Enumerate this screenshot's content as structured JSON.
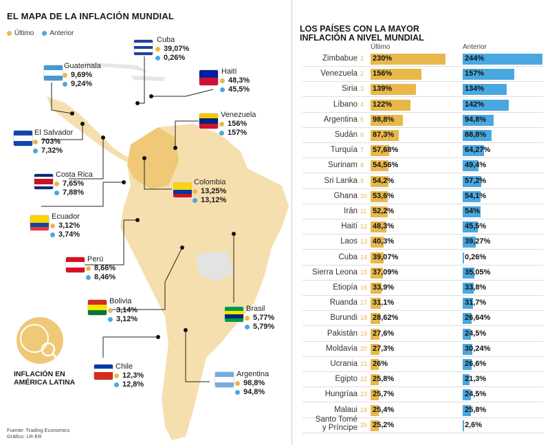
{
  "map": {
    "title": "EL MAPA DE LA INFLACIÓN MUNDIAL",
    "legend": {
      "ultimo": "Último",
      "anterior": "Anterior"
    },
    "colors": {
      "ultimo": "#e8b84b",
      "anterior": "#4aa8e0",
      "land": "#f6dfae",
      "land_dark": "#efc977"
    },
    "countries": [
      {
        "name": "Cuba",
        "ultimo": "39,07%",
        "anterior": "0,26%",
        "flag": [
          "#1e3f9c",
          "#ffffff",
          "#1e3f9c",
          "#ffffff",
          "#1e3f9c"
        ]
      },
      {
        "name": "Guatemala",
        "ultimo": "9,69%",
        "anterior": "9,24%",
        "flag": [
          "#4997d0",
          "#ffffff",
          "#4997d0"
        ]
      },
      {
        "name": "Haití",
        "ultimo": "48,3%",
        "anterior": "45,5%",
        "flag": [
          "#00209f",
          "#d21034"
        ]
      },
      {
        "name": "El Salvador",
        "ultimo": "703%",
        "anterior": "7,32%",
        "flag": [
          "#0f47af",
          "#ffffff",
          "#0f47af"
        ]
      },
      {
        "name": "Venezuela",
        "ultimo": "156%",
        "anterior": "157%",
        "flag": [
          "#f4c500",
          "#00247d",
          "#cf142b"
        ]
      },
      {
        "name": "Costa Rica",
        "ultimo": "7,65%",
        "anterior": "7,88%",
        "flag": [
          "#002b7f",
          "#ffffff",
          "#ce1126",
          "#ce1126",
          "#ffffff",
          "#002b7f"
        ]
      },
      {
        "name": "Colombia",
        "ultimo": "13,25%",
        "anterior": "13,12%",
        "flag": [
          "#fcd116",
          "#fcd116",
          "#003893",
          "#ce1126"
        ]
      },
      {
        "name": "Ecuador",
        "ultimo": "3,12%",
        "anterior": "3,74%",
        "flag": [
          "#ffd100",
          "#ffd100",
          "#034ea2",
          "#ef3340"
        ]
      },
      {
        "name": "Perú",
        "ultimo": "8,66%",
        "anterior": "8,46%",
        "flag": [
          "#d91023",
          "#ffffff",
          "#d91023"
        ]
      },
      {
        "name": "Bolivia",
        "ultimo": "3,14%",
        "anterior": "3,12%",
        "flag": [
          "#d52b1e",
          "#f9e300",
          "#007934"
        ]
      },
      {
        "name": "Brasil",
        "ultimo": "5,77%",
        "anterior": "5,79%",
        "flag": [
          "#009c3b",
          "#ffdf00",
          "#002776",
          "#009c3b"
        ]
      },
      {
        "name": "Chile",
        "ultimo": "12,3%",
        "anterior": "12,8%",
        "flag": [
          "#0039a6",
          "#ffffff",
          "#d52b1e",
          "#d52b1e"
        ]
      },
      {
        "name": "Argentina",
        "ultimo": "98,8%",
        "anterior": "94,8%",
        "flag": [
          "#74acdf",
          "#ffffff",
          "#74acdf"
        ]
      }
    ],
    "badge_label": "INFLACIÓN EN AMÉRICA LATINA",
    "source": "Fuente: Trading Economics",
    "graphic": "Gráfico: LR-ER"
  },
  "chart_data": {
    "type": "bar",
    "title": "LOS PAÍSES CON LA MAYOR INFLACIÓN A NIVEL MUNDIAL",
    "series": [
      {
        "name": "Último",
        "color": "#e8b84b"
      },
      {
        "name": "Anterior",
        "color": "#4aa8e0"
      }
    ],
    "rows": [
      {
        "rank": "1",
        "country": "Zimbabue",
        "ultimo": 230,
        "ultimo_label": "230%",
        "anterior": 244,
        "anterior_label": "244%"
      },
      {
        "rank": "2",
        "country": "Venezuela",
        "ultimo": 156,
        "ultimo_label": "156%",
        "anterior": 157,
        "anterior_label": "157%"
      },
      {
        "rank": "3",
        "country": "Siria",
        "ultimo": 139,
        "ultimo_label": "139%",
        "anterior": 134,
        "anterior_label": "134%"
      },
      {
        "rank": "4",
        "country": "Líbano",
        "ultimo": 122,
        "ultimo_label": "122%",
        "anterior": 142,
        "anterior_label": "142%"
      },
      {
        "rank": "5",
        "country": "Argentina",
        "ultimo": 98.8,
        "ultimo_label": "98,8%",
        "anterior": 94.8,
        "anterior_label": "94,8%"
      },
      {
        "rank": "6",
        "country": "Sudán",
        "ultimo": 87.3,
        "ultimo_label": "87,3%",
        "anterior": 88.8,
        "anterior_label": "88,8%"
      },
      {
        "rank": "7",
        "country": "Turquía",
        "ultimo": 57.68,
        "ultimo_label": "57,68%",
        "anterior": 64.27,
        "anterior_label": "64,27%"
      },
      {
        "rank": "8",
        "country": "Surinam",
        "ultimo": 54.56,
        "ultimo_label": "54,56%",
        "anterior": 49.4,
        "anterior_label": "49,4%"
      },
      {
        "rank": "9",
        "country": "Sri Lanka",
        "ultimo": 54.2,
        "ultimo_label": "54,2%",
        "anterior": 57.2,
        "anterior_label": "57,2%"
      },
      {
        "rank": "10",
        "country": "Ghana",
        "ultimo": 53.6,
        "ultimo_label": "53,6%",
        "anterior": 54.1,
        "anterior_label": "54,1%"
      },
      {
        "rank": "11",
        "country": "Irán",
        "ultimo": 52.2,
        "ultimo_label": "52,2%",
        "anterior": 54,
        "anterior_label": "54%"
      },
      {
        "rank": "12",
        "country": "Haití",
        "ultimo": 48.3,
        "ultimo_label": "48,3%",
        "anterior": 45.5,
        "anterior_label": "45,5%"
      },
      {
        "rank": "13",
        "country": "Laos",
        "ultimo": 40.3,
        "ultimo_label": "40,3%",
        "anterior": 39.27,
        "anterior_label": "39,27%"
      },
      {
        "rank": "14",
        "country": "Cuba",
        "ultimo": 39.07,
        "ultimo_label": "39,07%",
        "anterior": 0.26,
        "anterior_label": "0,26%"
      },
      {
        "rank": "15",
        "country": "Sierra Leona",
        "ultimo": 37.09,
        "ultimo_label": "37,09%",
        "anterior": 35.05,
        "anterior_label": "35,05%"
      },
      {
        "rank": "16",
        "country": "Etiopía",
        "ultimo": 33.9,
        "ultimo_label": "33,9%",
        "anterior": 33.8,
        "anterior_label": "33,8%"
      },
      {
        "rank": "17",
        "country": "Ruanda",
        "ultimo": 31.1,
        "ultimo_label": "31,1%",
        "anterior": 31.7,
        "anterior_label": "31,7%"
      },
      {
        "rank": "18",
        "country": "Burundi",
        "ultimo": 28.62,
        "ultimo_label": "28,62%",
        "anterior": 26.64,
        "anterior_label": "26,64%"
      },
      {
        "rank": "19",
        "country": "Pakistán",
        "ultimo": 27.6,
        "ultimo_label": "27,6%",
        "anterior": 24.5,
        "anterior_label": "24,5%"
      },
      {
        "rank": "20",
        "country": "Moldavia",
        "ultimo": 27.3,
        "ultimo_label": "27,3%",
        "anterior": 30.24,
        "anterior_label": "30,24%"
      },
      {
        "rank": "21",
        "country": "Ucrania",
        "ultimo": 26,
        "ultimo_label": "26%",
        "anterior": 26.6,
        "anterior_label": "26,6%"
      },
      {
        "rank": "22",
        "country": "Egipto",
        "ultimo": 25.8,
        "ultimo_label": "25,8%",
        "anterior": 21.3,
        "anterior_label": "21,3%"
      },
      {
        "rank": "23",
        "country": "Hungríaa",
        "ultimo": 25.7,
        "ultimo_label": "25,7%",
        "anterior": 24.5,
        "anterior_label": "24,5%"
      },
      {
        "rank": "24",
        "country": "Malaui",
        "ultimo": 25.4,
        "ultimo_label": "25,4%",
        "anterior": 25.8,
        "anterior_label": "25,8%"
      },
      {
        "rank": "25",
        "country": "Santo Tomé y Príncipe",
        "ultimo": 25.2,
        "ultimo_label": "25,2%",
        "anterior": 2.6,
        "anterior_label": "2,6%"
      }
    ]
  }
}
